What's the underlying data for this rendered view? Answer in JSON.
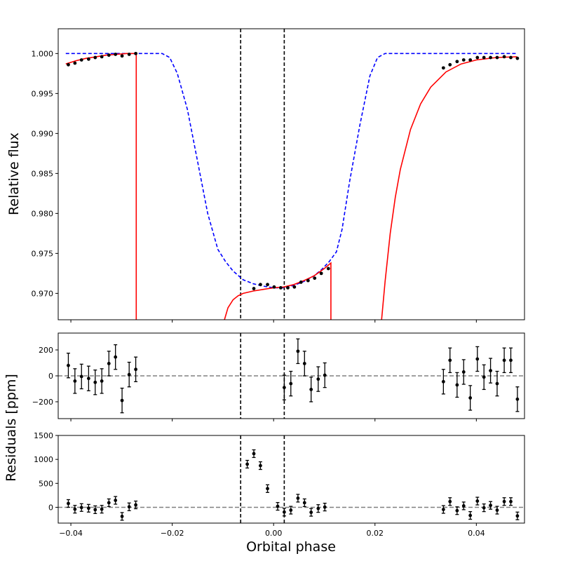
{
  "chart_data": [
    {
      "panel": "top",
      "type": "line",
      "ylabel": "Relative flux",
      "xlim": [
        -0.0425,
        0.0495
      ],
      "ylim": [
        0.9667,
        1.0031
      ],
      "xticks": [
        -0.04,
        -0.02,
        0.0,
        0.02,
        0.04
      ],
      "yticks": [
        0.97,
        0.975,
        0.98,
        0.985,
        0.99,
        0.995,
        1.0
      ],
      "ytick_labels": [
        "0.970",
        "0.975",
        "0.980",
        "0.985",
        "0.990",
        "0.995",
        "1.000"
      ],
      "vlines": [
        -0.0065,
        0.0021
      ],
      "series": [
        {
          "name": "model-dashed-blue",
          "color": "#0000ff",
          "style": "dashed",
          "x": [
            -0.041,
            -0.022,
            -0.0205,
            -0.019,
            -0.017,
            -0.015,
            -0.013,
            -0.011,
            -0.0095,
            -0.008,
            -0.006,
            -0.004,
            -0.002,
            0.0,
            0.002,
            0.004,
            0.006,
            0.008,
            0.0095,
            0.011,
            0.0124,
            0.0135,
            0.015,
            0.017,
            0.019,
            0.0205,
            0.022,
            0.048
          ],
          "y": [
            1.0,
            1.0,
            0.9995,
            0.9975,
            0.993,
            0.9865,
            0.98,
            0.9755,
            0.974,
            0.9728,
            0.9717,
            0.9712,
            0.9709,
            0.9707,
            0.9707,
            0.971,
            0.9715,
            0.9722,
            0.973,
            0.974,
            0.9752,
            0.978,
            0.984,
            0.991,
            0.9972,
            0.9995,
            1.0,
            1.0
          ]
        },
        {
          "name": "model-red-left",
          "color": "#ff0000",
          "style": "solid",
          "x": [
            -0.041,
            -0.039,
            -0.037,
            -0.035,
            -0.033,
            -0.031,
            -0.029,
            -0.0272,
            -0.0271,
            -0.0271
          ],
          "y": [
            0.9987,
            0.9991,
            0.9994,
            0.9996,
            0.9998,
            0.9999,
            1.0,
            1.0,
            1.0,
            0.9667
          ]
        },
        {
          "name": "model-red-center",
          "color": "#ff0000",
          "style": "solid",
          "x": [
            -0.0097,
            -0.009,
            -0.008,
            -0.007,
            -0.006,
            -0.004,
            -0.002,
            0.0,
            0.002,
            0.004,
            0.006,
            0.008,
            0.01,
            0.0113,
            0.0113
          ],
          "y": [
            0.9667,
            0.9682,
            0.9692,
            0.9697,
            0.97,
            0.9703,
            0.9705,
            0.9707,
            0.9708,
            0.9711,
            0.9716,
            0.9722,
            0.9731,
            0.9738,
            0.9667
          ]
        },
        {
          "name": "model-red-right",
          "color": "#ff0000",
          "style": "solid",
          "x": [
            0.0213,
            0.022,
            0.023,
            0.024,
            0.025,
            0.027,
            0.029,
            0.031,
            0.034,
            0.037,
            0.04,
            0.044,
            0.048
          ],
          "y": [
            0.9667,
            0.9715,
            0.9775,
            0.982,
            0.9855,
            0.9905,
            0.9937,
            0.9958,
            0.9977,
            0.9987,
            0.9992,
            0.9995,
            0.9996
          ]
        }
      ],
      "points": {
        "name": "observed",
        "x": [
          -0.0405,
          -0.0392,
          -0.0379,
          -0.0365,
          -0.0352,
          -0.0339,
          -0.0325,
          -0.0312,
          -0.0299,
          -0.0285,
          -0.0272,
          -0.0039,
          -0.0026,
          -0.0012,
          0.0001,
          0.0014,
          0.0028,
          0.0041,
          0.0054,
          0.0068,
          0.0081,
          0.0094,
          0.0108,
          0.0335,
          0.0348,
          0.0362,
          0.0375,
          0.0388,
          0.0402,
          0.0415,
          0.0428,
          0.0441,
          0.0455,
          0.0468,
          0.0481
        ],
        "y": [
          0.9986,
          0.9988,
          0.9992,
          0.9993,
          0.9995,
          0.9996,
          0.9998,
          0.9999,
          0.9997,
          0.9999,
          1.0,
          0.9706,
          0.9711,
          0.9711,
          0.9708,
          0.9707,
          0.9707,
          0.9708,
          0.9714,
          0.9716,
          0.9719,
          0.9725,
          0.9731,
          0.9982,
          0.9986,
          0.999,
          0.9992,
          0.9992,
          0.9995,
          0.9995,
          0.9995,
          0.9995,
          0.9996,
          0.9995,
          0.9994
        ]
      }
    },
    {
      "panel": "middle",
      "type": "scatter",
      "xlim": [
        -0.0425,
        0.0495
      ],
      "ylim": [
        -330,
        330
      ],
      "yticks": [
        -200,
        0,
        200
      ],
      "ytick_labels": [
        "−200",
        "0",
        "200"
      ],
      "hline": 0,
      "vlines": [
        -0.0065,
        0.0021
      ],
      "points": {
        "x": [
          -0.0405,
          -0.0392,
          -0.0379,
          -0.0365,
          -0.0352,
          -0.0339,
          -0.0325,
          -0.0312,
          -0.0299,
          -0.0285,
          -0.0272,
          0.0021,
          0.0034,
          0.0048,
          0.0061,
          0.0074,
          0.0088,
          0.0101,
          0.0335,
          0.0348,
          0.0362,
          0.0375,
          0.0388,
          0.0402,
          0.0415,
          0.0428,
          0.0441,
          0.0455,
          0.0468,
          0.0481
        ],
        "y": [
          80,
          -40,
          -5,
          -20,
          -50,
          -40,
          95,
          145,
          -190,
          10,
          50,
          -90,
          -60,
          190,
          95,
          -105,
          -25,
          5,
          -45,
          120,
          -70,
          30,
          -170,
          130,
          -10,
          40,
          -60,
          120,
          120,
          -180
        ],
        "err": [
          95,
          95,
          95,
          95,
          95,
          95,
          95,
          95,
          95,
          95,
          95,
          95,
          95,
          95,
          95,
          95,
          95,
          95,
          95,
          95,
          95,
          95,
          95,
          95,
          95,
          95,
          95,
          95,
          95,
          95
        ]
      }
    },
    {
      "panel": "bottom",
      "type": "scatter",
      "xlabel": "Orbital phase",
      "xlim": [
        -0.0425,
        0.0495
      ],
      "ylim": [
        -330,
        1500
      ],
      "xticks": [
        -0.04,
        -0.02,
        0.0,
        0.02,
        0.04
      ],
      "xtick_labels": [
        "−0.04",
        "−0.02",
        "0.00",
        "0.02",
        "0.04"
      ],
      "yticks": [
        0,
        500,
        1000,
        1500
      ],
      "ytick_labels": [
        "0",
        "500",
        "1000",
        "1500"
      ],
      "hline": 0,
      "vlines": [
        -0.0065,
        0.0021
      ],
      "points": {
        "x": [
          -0.0405,
          -0.0392,
          -0.0379,
          -0.0365,
          -0.0352,
          -0.0339,
          -0.0325,
          -0.0312,
          -0.0299,
          -0.0285,
          -0.0272,
          -0.0052,
          -0.0039,
          -0.0026,
          -0.0012,
          0.0008,
          0.0021,
          0.0034,
          0.0048,
          0.0061,
          0.0074,
          0.0088,
          0.0101,
          0.0335,
          0.0348,
          0.0362,
          0.0375,
          0.0388,
          0.0402,
          0.0415,
          0.0428,
          0.0441,
          0.0455,
          0.0468,
          0.0481
        ],
        "y": [
          80,
          -40,
          -5,
          -20,
          -50,
          -40,
          95,
          145,
          -190,
          10,
          50,
          900,
          1120,
          870,
          390,
          20,
          -100,
          -60,
          190,
          95,
          -105,
          -25,
          5,
          -45,
          120,
          -70,
          30,
          -170,
          130,
          -10,
          40,
          -60,
          120,
          120,
          -180
        ],
        "err": [
          80,
          80,
          80,
          80,
          80,
          80,
          80,
          80,
          80,
          80,
          80,
          80,
          80,
          80,
          80,
          80,
          80,
          80,
          80,
          80,
          80,
          80,
          80,
          80,
          80,
          80,
          80,
          80,
          80,
          80,
          80,
          80,
          80,
          80,
          80
        ]
      }
    }
  ],
  "shared_ylabel": "Residuals [ppm]"
}
